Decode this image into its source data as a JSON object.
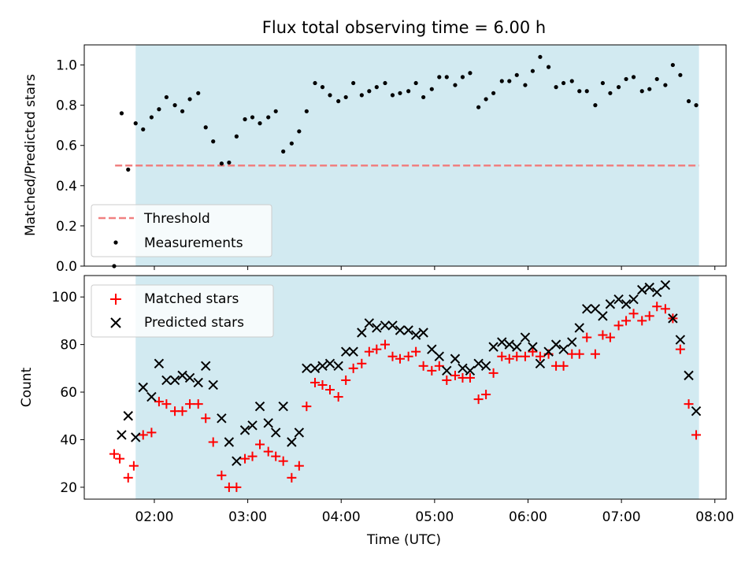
{
  "title": "Flux total observing time = 6.00 h",
  "chart_data": [
    {
      "type": "scatter",
      "ylabel": "Matched/Predicted stars",
      "xlim": [
        1.25,
        8.12
      ],
      "ylim": [
        0,
        1.1
      ],
      "yticks": [
        0.0,
        0.2,
        0.4,
        0.6,
        0.8,
        1.0
      ],
      "ytick_labels": [
        "0.0",
        "0.2",
        "0.4",
        "0.6",
        "0.8",
        "1.0"
      ],
      "shaded_span": [
        1.8,
        7.83
      ],
      "colors": {
        "span": "#add8e6",
        "threshold": "#f08080",
        "measurements": "#000000"
      },
      "legend": {
        "placement": "lower-left",
        "entries": [
          "Threshold",
          "Measurements"
        ]
      },
      "threshold": {
        "name": "Threshold",
        "y": 0.5,
        "x_range": [
          1.58,
          7.83
        ]
      },
      "series": [
        {
          "name": "Measurements",
          "x": [
            1.57,
            1.65,
            1.72,
            1.8,
            1.88,
            1.97,
            2.05,
            2.13,
            2.22,
            2.3,
            2.38,
            2.47,
            2.55,
            2.63,
            2.72,
            2.8,
            2.88,
            2.97,
            3.05,
            3.13,
            3.22,
            3.3,
            3.38,
            3.47,
            3.55,
            3.63,
            3.72,
            3.8,
            3.88,
            3.97,
            4.05,
            4.13,
            4.22,
            4.3,
            4.38,
            4.47,
            4.55,
            4.63,
            4.72,
            4.8,
            4.88,
            4.97,
            5.05,
            5.13,
            5.22,
            5.3,
            5.38,
            5.47,
            5.55,
            5.63,
            5.72,
            5.8,
            5.88,
            5.97,
            6.05,
            6.13,
            6.22,
            6.3,
            6.38,
            6.47,
            6.55,
            6.63,
            6.72,
            6.8,
            6.88,
            6.97,
            7.05,
            7.13,
            7.22,
            7.3,
            7.38,
            7.47,
            7.55,
            7.63,
            7.72,
            7.8
          ],
          "y": [
            0.0,
            0.76,
            0.48,
            0.71,
            0.68,
            0.74,
            0.78,
            0.84,
            0.8,
            0.77,
            0.83,
            0.86,
            0.69,
            0.62,
            0.51,
            0.515,
            0.645,
            0.73,
            0.74,
            0.71,
            0.74,
            0.77,
            0.57,
            0.61,
            0.67,
            0.77,
            0.91,
            0.89,
            0.85,
            0.82,
            0.84,
            0.91,
            0.85,
            0.87,
            0.89,
            0.91,
            0.85,
            0.86,
            0.87,
            0.91,
            0.84,
            0.88,
            0.94,
            0.94,
            0.9,
            0.94,
            0.96,
            0.79,
            0.83,
            0.86,
            0.92,
            0.92,
            0.95,
            0.9,
            0.97,
            1.04,
            0.99,
            0.89,
            0.91,
            0.92,
            0.87,
            0.87,
            0.8,
            0.91,
            0.86,
            0.89,
            0.93,
            0.94,
            0.87,
            0.88,
            0.93,
            0.9,
            1.0,
            0.95,
            0.82,
            0.8
          ]
        }
      ]
    },
    {
      "type": "scatter",
      "ylabel": "Count",
      "xlabel": "Time (UTC)",
      "xlim": [
        1.25,
        8.12
      ],
      "ylim": [
        15,
        109
      ],
      "yticks": [
        20,
        40,
        60,
        80,
        100
      ],
      "ytick_labels": [
        "20",
        "40",
        "60",
        "80",
        "100"
      ],
      "xticks": [
        2,
        3,
        4,
        5,
        6,
        7,
        8
      ],
      "xtick_labels": [
        "02:00",
        "03:00",
        "04:00",
        "05:00",
        "06:00",
        "07:00",
        "08:00"
      ],
      "shaded_span": [
        1.8,
        7.83
      ],
      "colors": {
        "matched": "#ff0000",
        "predicted": "#000000"
      },
      "legend": {
        "placement": "top-left",
        "entries": [
          "Matched stars",
          "Predicted stars"
        ]
      },
      "series": [
        {
          "name": "Matched stars",
          "marker": "plus",
          "x": [
            1.57,
            1.63,
            1.72,
            1.78,
            1.88,
            1.97,
            2.05,
            2.13,
            2.22,
            2.3,
            2.38,
            2.47,
            2.55,
            2.63,
            2.72,
            2.8,
            2.88,
            2.97,
            3.05,
            3.13,
            3.22,
            3.3,
            3.38,
            3.47,
            3.55,
            3.63,
            3.72,
            3.8,
            3.88,
            3.97,
            4.05,
            4.13,
            4.22,
            4.3,
            4.38,
            4.47,
            4.55,
            4.63,
            4.72,
            4.8,
            4.88,
            4.97,
            5.05,
            5.13,
            5.22,
            5.3,
            5.38,
            5.47,
            5.55,
            5.63,
            5.72,
            5.8,
            5.88,
            5.97,
            6.05,
            6.13,
            6.22,
            6.3,
            6.38,
            6.47,
            6.55,
            6.63,
            6.72,
            6.8,
            6.88,
            6.97,
            7.05,
            7.13,
            7.22,
            7.3,
            7.38,
            7.47,
            7.55,
            7.63,
            7.72,
            7.8
          ],
          "y": [
            34,
            32,
            24,
            29,
            42,
            43,
            56,
            55,
            52,
            52,
            55,
            55,
            49,
            39,
            25,
            20,
            20,
            32,
            33,
            38,
            35,
            33,
            31,
            24,
            29,
            54,
            64,
            63,
            61,
            58,
            65,
            70,
            72,
            77,
            78,
            80,
            75,
            74,
            75,
            77,
            71,
            69,
            71,
            65,
            67,
            66,
            66,
            57,
            59,
            68,
            75,
            74,
            75,
            75,
            77,
            75,
            76,
            71,
            71,
            76,
            76,
            83,
            76,
            84,
            83,
            88,
            90,
            93,
            90,
            92,
            96,
            95,
            91,
            78,
            55,
            42
          ]
        },
        {
          "name": "Predicted stars",
          "marker": "x",
          "x": [
            1.65,
            1.72,
            1.8,
            1.88,
            1.97,
            2.05,
            2.13,
            2.22,
            2.3,
            2.38,
            2.47,
            2.55,
            2.63,
            2.72,
            2.8,
            2.88,
            2.97,
            3.05,
            3.13,
            3.22,
            3.3,
            3.38,
            3.47,
            3.55,
            3.63,
            3.72,
            3.8,
            3.88,
            3.97,
            4.05,
            4.13,
            4.22,
            4.3,
            4.38,
            4.47,
            4.55,
            4.63,
            4.72,
            4.8,
            4.88,
            4.97,
            5.05,
            5.13,
            5.22,
            5.3,
            5.38,
            5.47,
            5.55,
            5.63,
            5.72,
            5.8,
            5.88,
            5.97,
            6.05,
            6.13,
            6.22,
            6.3,
            6.38,
            6.47,
            6.55,
            6.63,
            6.72,
            6.8,
            6.88,
            6.97,
            7.05,
            7.13,
            7.22,
            7.3,
            7.38,
            7.47,
            7.55,
            7.63,
            7.72,
            7.8
          ],
          "y": [
            42,
            50,
            41,
            62,
            58,
            72,
            65,
            65,
            67,
            66,
            64,
            71,
            63,
            49,
            39,
            31,
            44,
            46,
            54,
            47,
            43,
            54,
            39,
            43,
            70,
            70,
            71,
            72,
            71,
            77,
            77,
            85,
            89,
            87,
            88,
            88,
            86,
            86,
            84,
            85,
            78,
            75,
            69,
            74,
            70,
            69,
            72,
            71,
            79,
            81,
            80,
            79,
            83,
            79,
            72,
            77,
            80,
            78,
            81,
            87,
            95,
            95,
            92,
            97,
            99,
            97,
            99,
            103,
            104,
            102,
            105,
            91,
            82,
            67,
            52
          ]
        }
      ]
    }
  ]
}
